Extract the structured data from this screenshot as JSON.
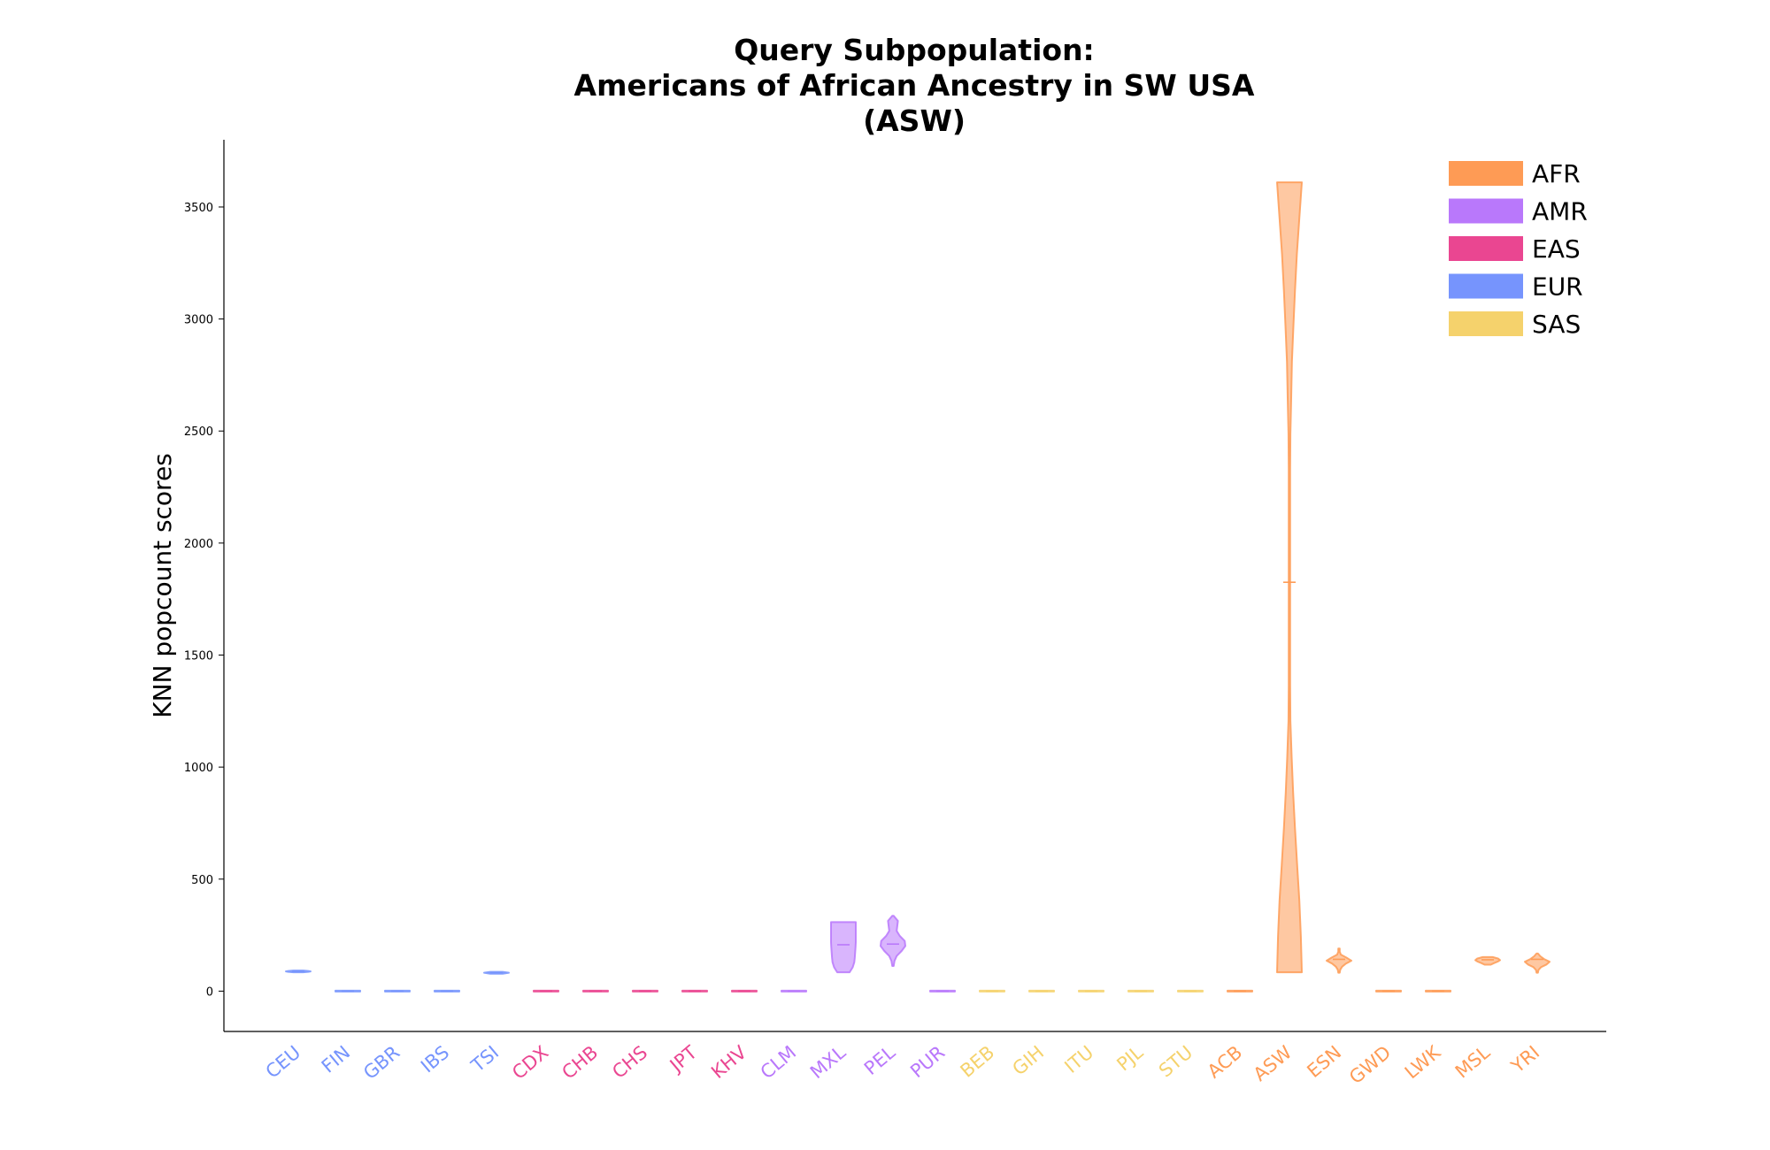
{
  "chart_data": {
    "type": "violin",
    "title": [
      "Query Subpopulation:",
      "Americans of African Ancestry in SW USA",
      "(ASW)"
    ],
    "xlabel": "",
    "ylabel": "KNN popcount scores",
    "ylim": [
      -180,
      3800
    ],
    "yticks": [
      0,
      500,
      1000,
      1500,
      2000,
      2500,
      3000,
      3500
    ],
    "grid": false,
    "legend_position": "top-right",
    "superpopulations": [
      {
        "name": "AFR",
        "color": "#fe9b55"
      },
      {
        "name": "AMR",
        "color": "#b978fb"
      },
      {
        "name": "EAS",
        "color": "#ea4691"
      },
      {
        "name": "EUR",
        "color": "#7694fd"
      },
      {
        "name": "SAS",
        "color": "#f5d26c"
      }
    ],
    "violins": [
      {
        "label": "CEU",
        "group": "EUR",
        "min": 84,
        "max": 92,
        "median": 88,
        "shape": [
          0.4,
          0.8,
          1.0,
          0.8,
          0.4
        ]
      },
      {
        "label": "FIN",
        "group": "EUR",
        "min": -2,
        "max": 2,
        "median": 0,
        "shape": [
          1,
          1
        ]
      },
      {
        "label": "GBR",
        "group": "EUR",
        "min": -2,
        "max": 2,
        "median": 0,
        "shape": [
          1,
          1
        ]
      },
      {
        "label": "IBS",
        "group": "EUR",
        "min": -2,
        "max": 2,
        "median": 0,
        "shape": [
          1,
          1
        ]
      },
      {
        "label": "TSI",
        "group": "EUR",
        "min": 78,
        "max": 86,
        "median": 82,
        "shape": [
          0.5,
          1.0,
          0.5
        ]
      },
      {
        "label": "CDX",
        "group": "EAS",
        "min": -2,
        "max": 2,
        "median": 0,
        "shape": [
          1,
          1
        ]
      },
      {
        "label": "CHB",
        "group": "EAS",
        "min": -2,
        "max": 2,
        "median": 0,
        "shape": [
          1,
          1
        ]
      },
      {
        "label": "CHS",
        "group": "EAS",
        "min": -2,
        "max": 2,
        "median": 0,
        "shape": [
          1,
          1
        ]
      },
      {
        "label": "JPT",
        "group": "EAS",
        "min": -2,
        "max": 2,
        "median": 0,
        "shape": [
          1,
          1
        ]
      },
      {
        "label": "KHV",
        "group": "EAS",
        "min": -2,
        "max": 2,
        "median": 0,
        "shape": [
          1,
          1
        ]
      },
      {
        "label": "CLM",
        "group": "AMR",
        "min": -2,
        "max": 2,
        "median": 0,
        "shape": [
          1,
          1
        ]
      },
      {
        "label": "MXL",
        "group": "AMR",
        "min": 84,
        "max": 308,
        "median": 207,
        "shape": [
          0.5,
          0.75,
          0.88,
          0.92,
          0.95,
          0.98,
          1.0,
          1.0,
          1.0,
          1.0,
          1.0
        ]
      },
      {
        "label": "PEL",
        "group": "AMR",
        "min": 112,
        "max": 336,
        "median": 210,
        "shape": [
          0.0,
          0.12,
          0.3,
          0.7,
          1.0,
          0.95,
          0.55,
          0.3,
          0.35,
          0.4,
          0.0
        ]
      },
      {
        "label": "PUR",
        "group": "AMR",
        "min": -2,
        "max": 2,
        "median": 0,
        "shape": [
          1,
          1
        ]
      },
      {
        "label": "BEB",
        "group": "SAS",
        "min": -2,
        "max": 2,
        "median": 0,
        "shape": [
          1,
          1
        ]
      },
      {
        "label": "GIH",
        "group": "SAS",
        "min": -2,
        "max": 2,
        "median": 0,
        "shape": [
          1,
          1
        ]
      },
      {
        "label": "ITU",
        "group": "SAS",
        "min": -2,
        "max": 2,
        "median": 0,
        "shape": [
          1,
          1
        ]
      },
      {
        "label": "PJL",
        "group": "SAS",
        "min": -2,
        "max": 2,
        "median": 0,
        "shape": [
          1,
          1
        ]
      },
      {
        "label": "STU",
        "group": "SAS",
        "min": -2,
        "max": 2,
        "median": 0,
        "shape": [
          1,
          1
        ]
      },
      {
        "label": "ACB",
        "group": "AFR",
        "min": -2,
        "max": 2,
        "median": 0,
        "shape": [
          1,
          1
        ]
      },
      {
        "label": "ASW",
        "group": "AFR",
        "min": 84,
        "max": 3610,
        "median": 1825,
        "shape": [
          1.0,
          0.92,
          0.8,
          0.62,
          0.45,
          0.3,
          0.18,
          0.08,
          0.03,
          0.01,
          0.02,
          0.0,
          0.0,
          0.02,
          0.04,
          0.08,
          0.14,
          0.2,
          0.32,
          0.45,
          0.6,
          0.8,
          1.0
        ]
      },
      {
        "label": "ESN",
        "group": "AFR",
        "min": 82,
        "max": 190,
        "median": 142,
        "shape": [
          0.0,
          0.1,
          0.25,
          0.55,
          1.0,
          0.6,
          0.15,
          0.05,
          0.0
        ]
      },
      {
        "label": "GWD",
        "group": "AFR",
        "min": -2,
        "max": 2,
        "median": 0,
        "shape": [
          1,
          1
        ]
      },
      {
        "label": "LWK",
        "group": "AFR",
        "min": -2,
        "max": 2,
        "median": 0,
        "shape": [
          1,
          1
        ]
      },
      {
        "label": "MSL",
        "group": "AFR",
        "min": 118,
        "max": 152,
        "median": 140,
        "shape": [
          0.25,
          0.5,
          0.8,
          1.0,
          0.85,
          0.4
        ]
      },
      {
        "label": "YRI",
        "group": "AFR",
        "min": 82,
        "max": 168,
        "median": 142,
        "shape": [
          0.0,
          0.1,
          0.3,
          0.75,
          1.0,
          0.55,
          0.25,
          0.0
        ]
      }
    ]
  }
}
